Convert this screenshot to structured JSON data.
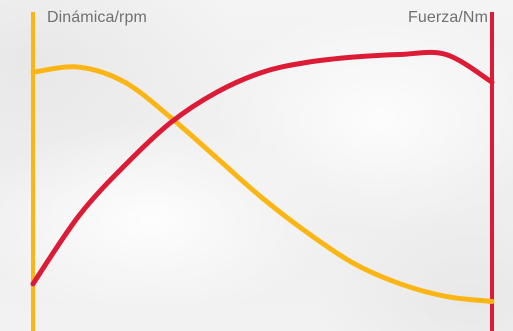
{
  "chart_data": {
    "type": "line",
    "left_axis_label": "Dinámica/rpm",
    "right_axis_label": "Fuerza/Nm",
    "x": [
      0,
      0.1,
      0.2,
      0.3,
      0.4,
      0.5,
      0.6,
      0.7,
      0.8,
      0.9,
      1.0
    ],
    "series": [
      {
        "values": [
          0.92,
          0.94,
          0.88,
          0.74,
          0.58,
          0.42,
          0.28,
          0.16,
          0.08,
          0.03,
          0.01
        ],
        "color": "#fbb615"
      },
      {
        "values": [
          0.08,
          0.35,
          0.55,
          0.72,
          0.84,
          0.92,
          0.96,
          0.98,
          0.99,
          0.99,
          0.88
        ],
        "color": "#dc1c36"
      }
    ],
    "grid": false,
    "legend": "none",
    "colors": {
      "left_axis": "#fbb615",
      "right_axis": "#dc1c36",
      "label_text": "#707070"
    }
  }
}
